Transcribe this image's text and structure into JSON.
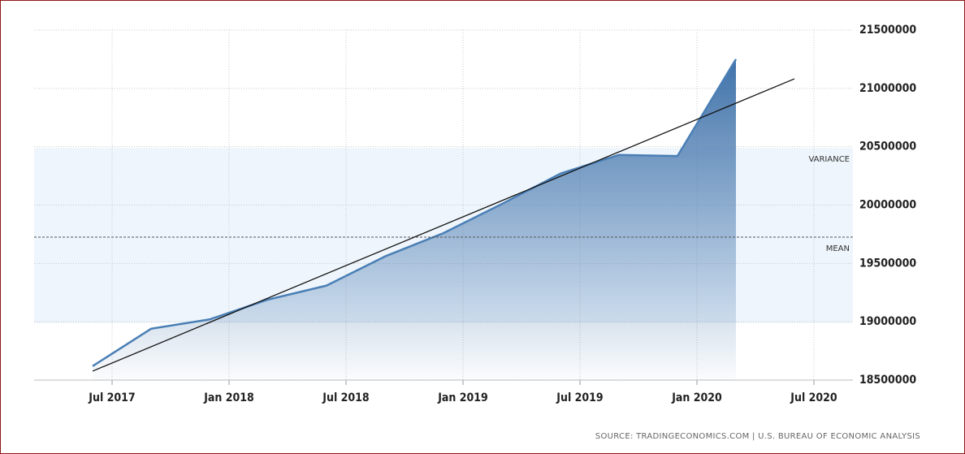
{
  "chart_data": {
    "type": "area",
    "x": [
      "2017-06",
      "2017-09",
      "2017-12",
      "2018-03",
      "2018-06",
      "2018-09",
      "2018-12",
      "2019-03",
      "2019-06",
      "2019-09",
      "2019-12",
      "2020-03"
    ],
    "values": [
      18620000,
      18940000,
      19020000,
      19190000,
      19310000,
      19560000,
      19760000,
      20010000,
      20270000,
      20430000,
      20420000,
      21250000
    ],
    "color": "#4a7fb5",
    "xlim": [
      "2017-03",
      "2020-09"
    ],
    "xticks": [
      {
        "value": "2017-07",
        "label": "Jul 2017"
      },
      {
        "value": "2018-01",
        "label": "Jan 2018"
      },
      {
        "value": "2018-07",
        "label": "Jul 2018"
      },
      {
        "value": "2019-01",
        "label": "Jan 2019"
      },
      {
        "value": "2019-07",
        "label": "Jul 2019"
      },
      {
        "value": "2020-01",
        "label": "Jan 2020"
      },
      {
        "value": "2020-07",
        "label": "Jul 2020"
      }
    ],
    "ylim": [
      18500000,
      21500000
    ],
    "yticks": [
      18500000,
      19000000,
      19500000,
      20000000,
      20500000,
      21000000,
      21500000
    ],
    "grid": true,
    "trend": {
      "x": [
        "2017-06",
        "2020-06"
      ],
      "values": [
        18577000,
        21082000
      ],
      "color": "#111111"
    },
    "mean": {
      "label": "MEAN",
      "value": 19725000
    },
    "variance": {
      "label": "VARIANCE",
      "values": [
        18990000,
        20490000
      ]
    },
    "source": "SOURCE: TRADINGECONOMICS.COM | U.S. BUREAU OF ECONOMIC ANALYSIS"
  }
}
